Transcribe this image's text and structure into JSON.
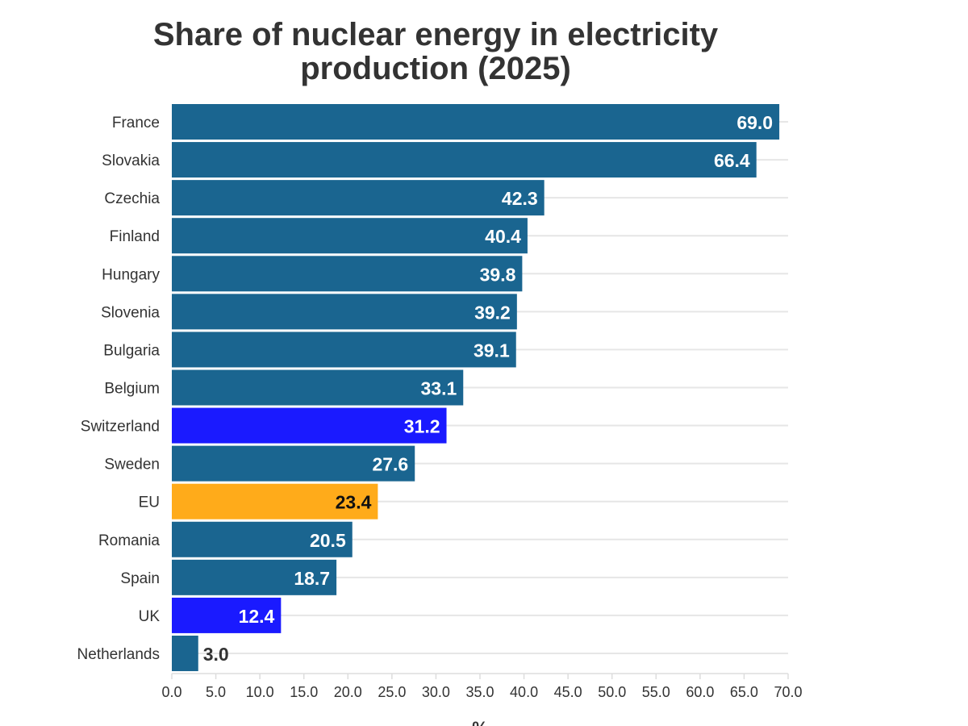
{
  "chart_data": {
    "type": "bar",
    "orientation": "horizontal",
    "title": "Share of nuclear energy in electricity production (2025)",
    "title_lines": [
      "Share of nuclear energy in electricity",
      "production (2025)"
    ],
    "xlabel": "%",
    "ylabel": "",
    "xlim": [
      0,
      70
    ],
    "x_ticks": [
      "0.0",
      "5.0",
      "10.0",
      "15.0",
      "20.0",
      "25.0",
      "30.0",
      "35.0",
      "40.0",
      "45.0",
      "50.0",
      "55.0",
      "60.0",
      "65.0",
      "70.0"
    ],
    "grid": true,
    "categories": [
      "France",
      "Slovakia",
      "Czechia",
      "Finland",
      "Hungary",
      "Slovenia",
      "Bulgaria",
      "Belgium",
      "Switzerland",
      "Sweden",
      "EU",
      "Romania",
      "Spain",
      "UK",
      "Netherlands"
    ],
    "values": [
      69.0,
      66.4,
      42.3,
      40.4,
      39.8,
      39.2,
      39.1,
      33.1,
      31.2,
      27.6,
      23.4,
      20.5,
      18.7,
      12.4,
      3.0
    ],
    "value_labels": [
      "69.0",
      "66.4",
      "42.3",
      "40.4",
      "39.8",
      "39.2",
      "39.1",
      "33.1",
      "31.2",
      "27.6",
      "23.4",
      "20.5",
      "18.7",
      "12.4",
      "3.0"
    ],
    "colors": {
      "default": "#1a6590",
      "non_eu": "#1a1aff",
      "eu_average": "#ffab1a"
    },
    "highlight": {
      "Switzerland": "non_eu",
      "UK": "non_eu",
      "EU": "eu_average"
    }
  }
}
